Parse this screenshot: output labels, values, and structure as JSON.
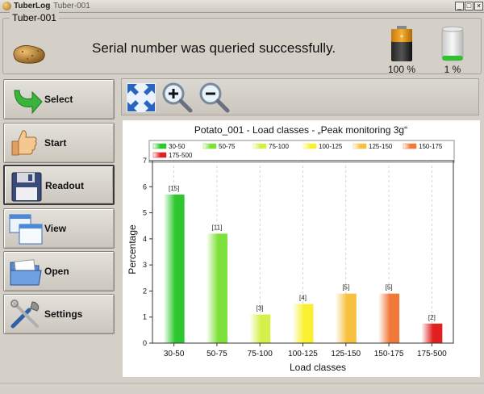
{
  "window": {
    "app_name": "TuberLog",
    "separator": "-",
    "device_title": "Tuber-001",
    "controls": [
      "_",
      "□",
      "×"
    ]
  },
  "device": {
    "name": "Tuber-001",
    "status_message": "Serial number was queried successfully.",
    "battery": {
      "percent_label": "100 %",
      "level": 1.0
    },
    "memory": {
      "percent_label": "1 %",
      "level": 0.01
    }
  },
  "nav": [
    {
      "id": "select",
      "label": "Select",
      "icon": "green-arrow-icon"
    },
    {
      "id": "start",
      "label": "Start",
      "icon": "thumbs-up-icon"
    },
    {
      "id": "readout",
      "label": "Readout",
      "icon": "floppy-disk-icon"
    },
    {
      "id": "view",
      "label": "View",
      "icon": "windows-icon"
    },
    {
      "id": "open",
      "label": "Open",
      "icon": "folder-icon"
    },
    {
      "id": "settings",
      "label": "Settings",
      "icon": "tools-icon"
    }
  ],
  "toolbar": [
    "fit-to-window-icon",
    "zoom-in-icon",
    "zoom-out-icon"
  ],
  "chart_data": {
    "type": "bar",
    "title": "Potato_001 - Load classes - „Peak monitoring 3g“",
    "xlabel": "Load classes",
    "ylabel": "Percentage",
    "ylim": [
      0,
      7
    ],
    "yticks": [
      "0",
      "1",
      "2",
      "3",
      "4",
      "5",
      "6",
      "7"
    ],
    "categories": [
      "30-50",
      "50-75",
      "75-100",
      "100-125",
      "125-150",
      "150-175",
      "175-500"
    ],
    "values": [
      5.7,
      4.2,
      1.1,
      1.5,
      1.9,
      1.9,
      0.75
    ],
    "data_labels": [
      "[15]",
      "[11]",
      "[3]",
      "[4]",
      "[5]",
      "[5]",
      "[2]"
    ],
    "legend": [
      "30-50",
      "50-75",
      "75-100",
      "100-125",
      "125-150",
      "150-175",
      "175-500"
    ],
    "legend_position": "top",
    "colors": [
      "#2ec82e",
      "#7ee03a",
      "#d4f04a",
      "#f8f030",
      "#f8c040",
      "#f07838",
      "#e02020"
    ],
    "grid": true
  }
}
